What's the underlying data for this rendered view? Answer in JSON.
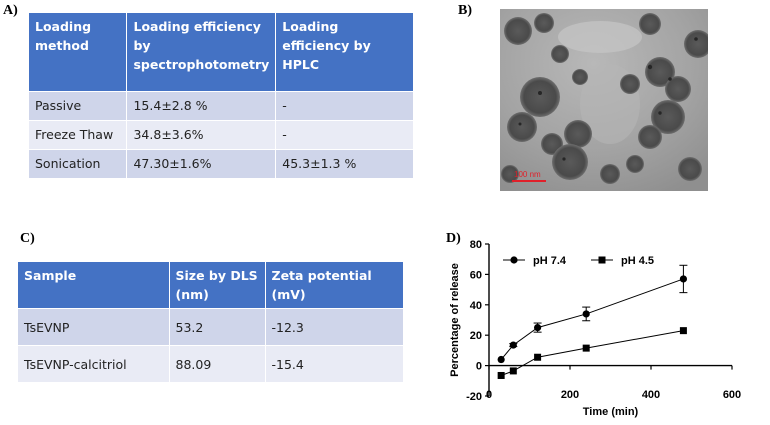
{
  "panels": {
    "a": "A)",
    "b": "B)",
    "c": "C)",
    "d": "D)"
  },
  "table_a": {
    "headers": [
      "Loading method",
      "Loading efficiency by spectrophotometry",
      "Loading efficiency by HPLC"
    ],
    "rows": [
      [
        "Passive",
        "15.4±2.8 %",
        "-"
      ],
      [
        "Freeze Thaw",
        "34.8±3.6%",
        "-"
      ],
      [
        "Sonication",
        "47.30±1.6%",
        "45.3±1.3 %"
      ]
    ]
  },
  "micrograph": {
    "scale_bar_label": "100 nm"
  },
  "table_c": {
    "headers": [
      "Sample",
      "Size by DLS (nm)",
      "Zeta potential (mV)"
    ],
    "rows": [
      [
        "TsEVNP",
        "53.2",
        "-12.3"
      ],
      [
        "TsEVNP-calcitriol",
        "88.09",
        "-15.4"
      ]
    ]
  },
  "chart_data": {
    "type": "line",
    "xlabel": "Time (min)",
    "ylabel": "Percentage of release",
    "xlim": [
      0,
      600
    ],
    "ylim": [
      -20,
      80
    ],
    "xticks": [
      0,
      200,
      400,
      600
    ],
    "yticks": [
      -20,
      0,
      20,
      40,
      60,
      80
    ],
    "legend_position": "top-left",
    "series": [
      {
        "name": "pH 7.4",
        "marker": "circle",
        "x": [
          30,
          60,
          120,
          240,
          480
        ],
        "y": [
          4,
          13.5,
          25,
          34,
          57
        ],
        "err": [
          0,
          1,
          3,
          4.5,
          9
        ]
      },
      {
        "name": "pH 4.5",
        "marker": "square",
        "x": [
          30,
          60,
          120,
          240,
          480
        ],
        "y": [
          -6.5,
          -3.5,
          5.5,
          11.5,
          23
        ],
        "err": [
          0,
          0,
          0,
          0,
          0
        ]
      }
    ]
  }
}
